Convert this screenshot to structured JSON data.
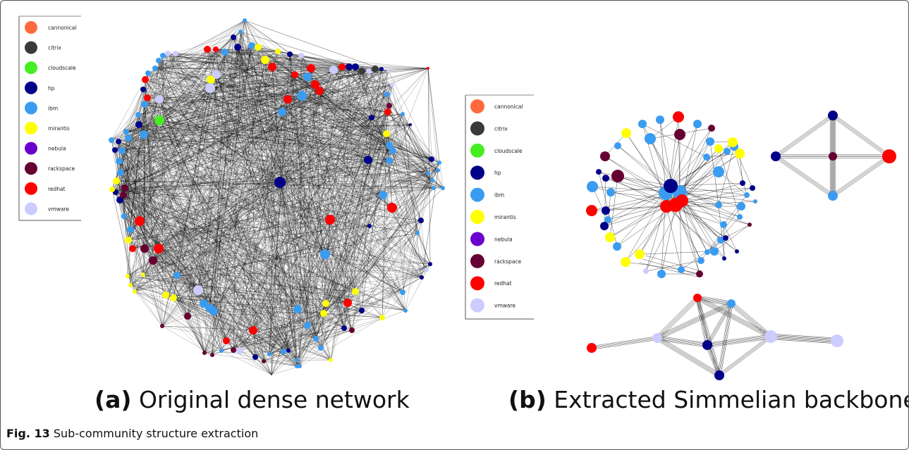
{
  "legend_categories": [
    "cannonical",
    "citrix",
    "cloudscale",
    "hp",
    "ibm",
    "mirantis",
    "nebula",
    "rackspace",
    "redhat",
    "vmware"
  ],
  "legend_colors": [
    "#ff6a3d",
    "#3a3a3a",
    "#44ee22",
    "#000088",
    "#3a9cf0",
    "#ffff00",
    "#6a00cc",
    "#660033",
    "#ff0000",
    "#ccccff"
  ],
  "edge_color": "#000000",
  "panel_a": {
    "tag": "(a)",
    "label": "Original dense network"
  },
  "panel_b": {
    "tag": "(b)",
    "label": "Extracted Simmelian backbone"
  },
  "caption": {
    "tag": "Fig. 13",
    "text": "Sub-community structure extraction"
  }
}
